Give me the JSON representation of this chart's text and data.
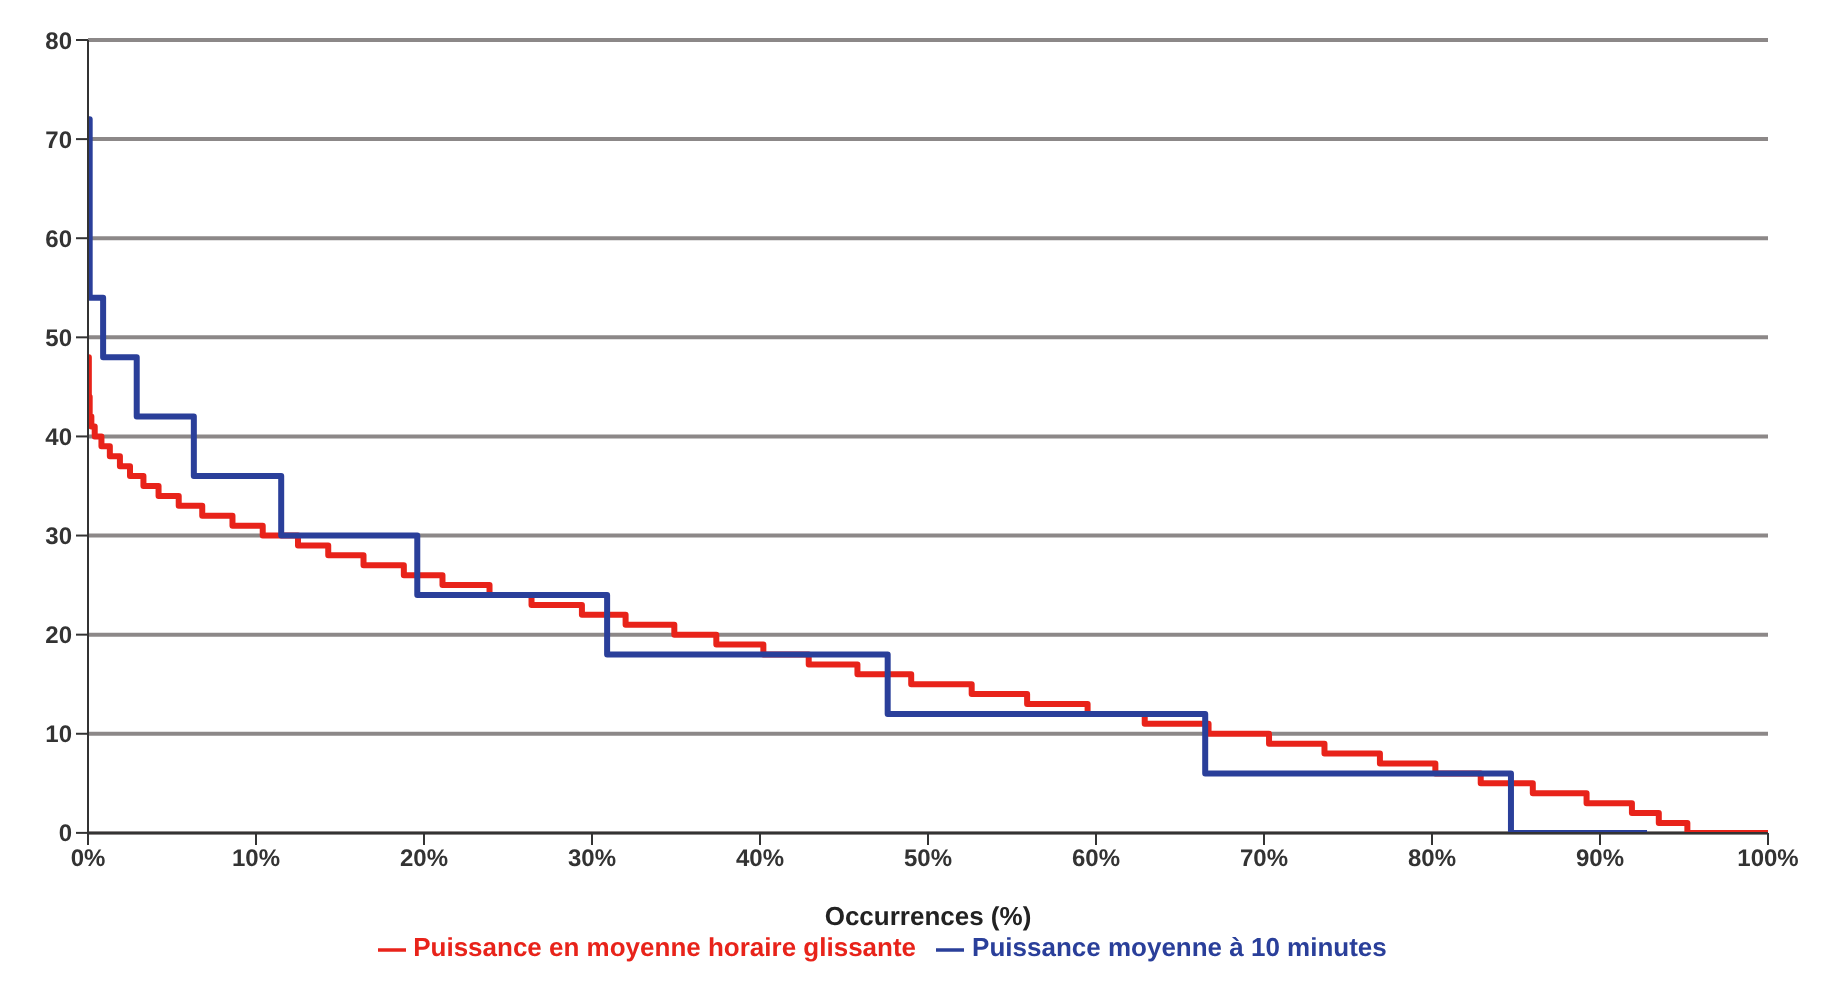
{
  "chart_data": {
    "type": "step",
    "xlabel": "Occurrences (%)",
    "xlim": [
      0,
      100
    ],
    "xticks": [
      {
        "value": 0,
        "label": "0%"
      },
      {
        "value": 10,
        "label": "10%"
      },
      {
        "value": 20,
        "label": "20%"
      },
      {
        "value": 30,
        "label": "30%"
      },
      {
        "value": 40,
        "label": "40%"
      },
      {
        "value": 50,
        "label": "50%"
      },
      {
        "value": 60,
        "label": "60%"
      },
      {
        "value": 70,
        "label": "70%"
      },
      {
        "value": 80,
        "label": "80%"
      },
      {
        "value": 90,
        "label": "90%"
      },
      {
        "value": 100,
        "label": "100%"
      }
    ],
    "ylim": [
      0,
      80
    ],
    "yticks": [
      0,
      10,
      20,
      30,
      40,
      50,
      60,
      70,
      80
    ],
    "grid": "y",
    "legend": "bottom",
    "series": [
      {
        "name": "Puissance en moyenne horaire glissante",
        "color": "#e8231a",
        "x": [
          0,
          0.05,
          0.1,
          0.2,
          0.4,
          0.8,
          1.3,
          1.9,
          2.5,
          3.3,
          4.2,
          5.4,
          6.8,
          8.6,
          10.4,
          12.5,
          14.3,
          16.4,
          18.8,
          21.1,
          23.9,
          26.4,
          29.4,
          32,
          34.9,
          37.4,
          40.2,
          42.9,
          45.8,
          49,
          52.6,
          55.9,
          59.5,
          62.9,
          66.7,
          70.3,
          73.6,
          76.9,
          80.2,
          82.9,
          86,
          89.2,
          91.9,
          93.5,
          95.2,
          100
        ],
        "values": [
          48,
          44,
          42,
          41,
          40,
          39,
          38,
          37,
          36,
          35,
          34,
          33,
          32,
          31,
          30,
          29,
          28,
          27,
          26,
          25,
          24,
          23,
          22,
          21,
          20,
          19,
          18,
          17,
          16,
          15,
          14,
          13,
          12,
          11,
          10,
          9,
          8,
          7,
          6,
          5,
          4,
          3,
          2,
          1,
          0,
          0
        ]
      },
      {
        "name": "Puissance moyenne à 10 minutes",
        "color": "#2a3f9a",
        "x": [
          0,
          0.1,
          0.9,
          2.9,
          6.3,
          11.5,
          19.6,
          30.9,
          47.6,
          66.5,
          84.7,
          92.8
        ],
        "values": [
          72,
          54,
          48,
          42,
          36,
          30,
          24,
          18,
          12,
          6,
          0,
          0
        ]
      }
    ]
  }
}
